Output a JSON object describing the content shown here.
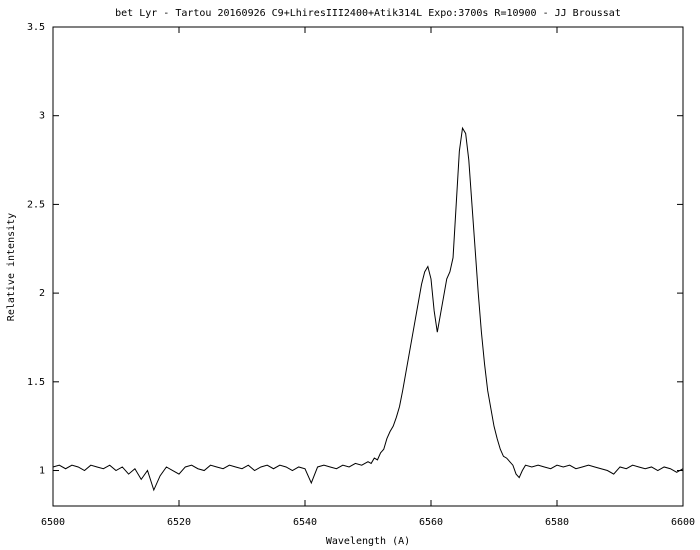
{
  "chart_data": {
    "type": "line",
    "title": "bet Lyr -  Tartou 20160926 C9+LhiresIII2400+Atik314L Expo:3700s R=10900  - JJ Broussat",
    "x_label": "Wavelength (A)",
    "y_label": "Relative intensity",
    "x": [
      6500,
      6501,
      6502,
      6503,
      6504,
      6505,
      6506,
      6507,
      6508,
      6509,
      6510,
      6511,
      6512,
      6513,
      6514,
      6515,
      6516,
      6517,
      6518,
      6519,
      6520,
      6521,
      6522,
      6523,
      6524,
      6525,
      6526,
      6527,
      6528,
      6529,
      6530,
      6531,
      6532,
      6533,
      6534,
      6535,
      6536,
      6537,
      6538,
      6539,
      6540,
      6541,
      6542,
      6543,
      6544,
      6545,
      6546,
      6547,
      6548,
      6549,
      6550,
      6550.5,
      6551,
      6551.5,
      6552,
      6552.5,
      6553,
      6553.5,
      6554,
      6554.5,
      6555,
      6555.5,
      6556,
      6556.5,
      6557,
      6557.5,
      6558,
      6558.5,
      6559,
      6559.5,
      6560,
      6560.5,
      6561,
      6561.5,
      6562,
      6562.5,
      6563,
      6563.5,
      6564,
      6564.5,
      6565,
      6565.5,
      6566,
      6566.5,
      6567,
      6567.5,
      6568,
      6568.5,
      6569,
      6569.5,
      6570,
      6570.5,
      6571,
      6571.5,
      6572,
      6572.5,
      6573,
      6573.5,
      6574,
      6574.5,
      6575,
      6576,
      6577,
      6578,
      6579,
      6580,
      6581,
      6582,
      6583,
      6584,
      6585,
      6586,
      6587,
      6588,
      6589,
      6590,
      6591,
      6592,
      6593,
      6594,
      6595,
      6596,
      6597,
      6598,
      6599,
      6600
    ],
    "series": [
      {
        "color": "#000000",
        "values": [
          1.02,
          1.03,
          1.01,
          1.03,
          1.02,
          1.0,
          1.03,
          1.02,
          1.01,
          1.03,
          1.0,
          1.02,
          0.98,
          1.01,
          0.95,
          1.0,
          0.89,
          0.97,
          1.02,
          1.0,
          0.98,
          1.02,
          1.03,
          1.01,
          1.0,
          1.03,
          1.02,
          1.01,
          1.03,
          1.02,
          1.01,
          1.03,
          1.0,
          1.02,
          1.03,
          1.01,
          1.03,
          1.02,
          1.0,
          1.02,
          1.01,
          0.93,
          1.02,
          1.03,
          1.02,
          1.01,
          1.03,
          1.02,
          1.04,
          1.03,
          1.05,
          1.04,
          1.07,
          1.06,
          1.1,
          1.12,
          1.18,
          1.22,
          1.25,
          1.3,
          1.36,
          1.45,
          1.55,
          1.65,
          1.75,
          1.85,
          1.95,
          2.05,
          2.12,
          2.15,
          2.08,
          1.9,
          1.78,
          1.88,
          1.98,
          2.08,
          2.12,
          2.2,
          2.5,
          2.8,
          2.93,
          2.9,
          2.75,
          2.5,
          2.25,
          2.0,
          1.78,
          1.6,
          1.45,
          1.35,
          1.25,
          1.18,
          1.12,
          1.08,
          1.07,
          1.05,
          1.03,
          0.98,
          0.96,
          1.0,
          1.03,
          1.02,
          1.03,
          1.02,
          1.01,
          1.03,
          1.02,
          1.03,
          1.01,
          1.02,
          1.03,
          1.02,
          1.01,
          1.0,
          0.98,
          1.02,
          1.01,
          1.03,
          1.02,
          1.01,
          1.02,
          1.0,
          1.02,
          1.01,
          0.99,
          1.01
        ]
      }
    ],
    "xlim": [
      6500,
      6600
    ],
    "xticks": [
      6500,
      6520,
      6540,
      6560,
      6580,
      6600
    ],
    "ylim": [
      0.8,
      3.5
    ],
    "yticks": [
      1,
      1.5,
      2,
      2.5,
      3,
      3.5
    ],
    "grid": false
  }
}
